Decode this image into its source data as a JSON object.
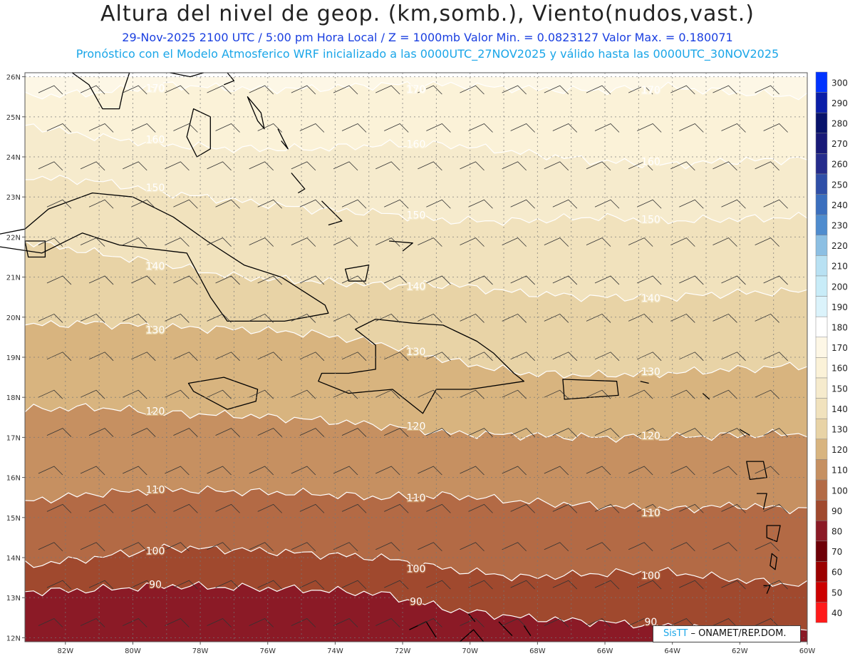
{
  "header": {
    "title": "Altura del nivel de geop. (km,somb.), Viento(nudos,vast.)",
    "line1": "29-Nov-2025 2100 UTC / 5:00 pm Hora Local / Z = 1000mb Valor Min. = 0.0823127  Valor Max. = 0.180071",
    "line2": "Pronóstico con el Modelo Atmosferico WRF inicializado a las 0000UTC_27NOV2025 y válido hasta las  0000UTC_30NOV2025"
  },
  "map": {
    "lon_range": [
      -83.2,
      -60
    ],
    "lat_range": [
      11.9,
      26.1
    ],
    "lat_ticks": [
      "12N",
      "13N",
      "14N",
      "15N",
      "16N",
      "17N",
      "18N",
      "19N",
      "20N",
      "21N",
      "22N",
      "23N",
      "24N",
      "25N",
      "26N"
    ],
    "lon_ticks": [
      "82W",
      "80W",
      "78W",
      "76W",
      "74W",
      "72W",
      "70W",
      "68W",
      "66W",
      "64W",
      "62W",
      "60W"
    ],
    "grid": true
  },
  "colors": {
    "lt90": "#8b1a26",
    "c90_100": "#a0492e",
    "c100_110": "#b36a45",
    "c110_120": "#c69061",
    "c120_130": "#d8b47f",
    "c130_140": "#e8d3a6",
    "c140_150": "#f1e2bd",
    "c150_160": "#f6ebcd",
    "c160_170": "#fbf2d8",
    "c170_180": "#fdf7e6",
    "contour": "#ffffff",
    "coast": "#000000",
    "grid": "#777777",
    "barb": "#333333"
  },
  "contours": [
    {
      "value": "90",
      "label": "90",
      "boundary_lat": [
        13.15,
        13.2,
        13.3,
        13.25,
        13.2,
        13.1,
        12.7,
        12.5,
        12.4,
        12.3,
        12.2,
        12.2
      ]
    },
    {
      "value": "100",
      "label": "100",
      "boundary_lat": [
        13.8,
        14.0,
        14.25,
        14.2,
        14.1,
        14.0,
        13.7,
        13.5,
        13.6,
        13.65,
        13.45,
        13.3
      ]
    },
    {
      "value": "110",
      "label": "110",
      "boundary_lat": [
        15.4,
        15.6,
        15.7,
        15.65,
        15.6,
        15.5,
        15.55,
        15.4,
        15.3,
        15.2,
        15.3,
        15.2
      ]
    },
    {
      "value": "120",
      "label": "120",
      "boundary_lat": [
        17.7,
        17.75,
        17.6,
        17.55,
        17.45,
        17.3,
        17.1,
        17.05,
        17.0,
        17.0,
        17.05,
        17.1
      ]
    },
    {
      "value": "130",
      "label": "130",
      "boundary_lat": [
        19.8,
        19.85,
        19.75,
        19.7,
        19.6,
        19.35,
        18.9,
        18.6,
        18.55,
        18.6,
        18.7,
        18.8
      ]
    },
    {
      "value": "140",
      "label": "140",
      "boundary_lat": [
        21.9,
        21.6,
        21.3,
        21.0,
        20.9,
        20.8,
        20.8,
        20.6,
        20.5,
        20.5,
        20.6,
        20.65
      ]
    },
    {
      "value": "150",
      "label": "150",
      "boundary_lat": [
        23.5,
        23.4,
        23.1,
        22.9,
        22.7,
        22.6,
        22.4,
        22.4,
        22.5,
        22.4,
        22.45,
        22.5
      ]
    },
    {
      "value": "160",
      "label": "160",
      "boundary_lat": [
        24.8,
        24.5,
        24.3,
        24.2,
        24.2,
        24.3,
        24.3,
        24.1,
        23.9,
        23.8,
        23.9,
        23.95
      ]
    },
    {
      "value": "170",
      "label": "170",
      "boundary_lat": [
        25.5,
        25.6,
        25.8,
        25.7,
        25.7,
        25.8,
        25.8,
        25.7,
        25.65,
        25.75,
        25.6,
        25.5
      ]
    }
  ],
  "colorbar": {
    "labels": [
      "300",
      "290",
      "280",
      "270",
      "260",
      "250",
      "240",
      "230",
      "220",
      "210",
      "200",
      "190",
      "180",
      "170",
      "160",
      "150",
      "140",
      "130",
      "120",
      "110",
      "100",
      "90",
      "80",
      "70",
      "60",
      "50",
      "40"
    ],
    "colors": [
      "#0033ff",
      "#0a1ea8",
      "#08136b",
      "#181a78",
      "#252c8c",
      "#2f4fa8",
      "#3b6fbe",
      "#4f8cce",
      "#8cbfe3",
      "#b8e1f3",
      "#c8ecf8",
      "#dbf3fb",
      "#ffffff",
      "#fdf7e6",
      "#fbf2d8",
      "#f6ebcd",
      "#f1e2bd",
      "#e8d3a6",
      "#d8b47f",
      "#c69061",
      "#b36a45",
      "#a0492e",
      "#8b1a26",
      "#6e0008",
      "#9b0000",
      "#cc0000",
      "#ff1a1a"
    ]
  },
  "credit": {
    "sis": "SisTT",
    "text": "– ONAMET/REP.DOM."
  }
}
